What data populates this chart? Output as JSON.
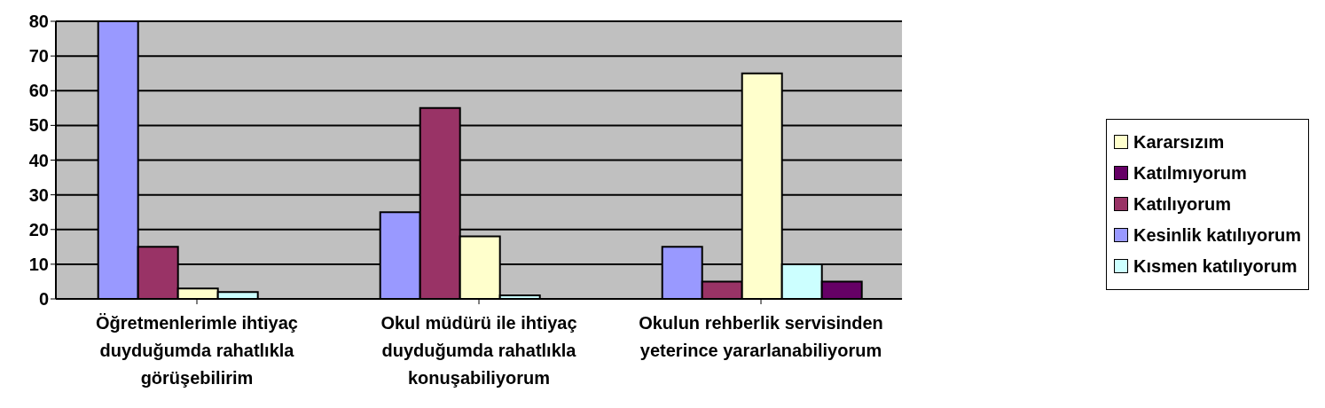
{
  "chart_data": {
    "type": "bar",
    "categories": [
      "Öğretmenlerimle ihtiyaç duyduğumda rahatlıkla görüşebilirim",
      "Okul müdürü ile ihtiyaç duyduğumda rahatlıkla konuşabiliyorum",
      "Okulun rehberlik servisinden yeterince yararlanabiliyorum"
    ],
    "series": [
      {
        "name": "Kesinlik katılıyorum",
        "color": "#9999ff",
        "values": [
          80,
          25,
          15
        ]
      },
      {
        "name": "Katılıyorum",
        "color": "#993366",
        "values": [
          15,
          55,
          5
        ]
      },
      {
        "name": "Kararsızım",
        "color": "#ffffcc",
        "values": [
          3,
          18,
          65
        ]
      },
      {
        "name": "Kısmen katılıyorum",
        "color": "#ccffff",
        "values": [
          2,
          1,
          10
        ]
      },
      {
        "name": "Katılmıyorum",
        "color": "#660066",
        "values": [
          0,
          0,
          5
        ]
      }
    ],
    "ylim": [
      0,
      80
    ],
    "yticks": [
      0,
      10,
      20,
      30,
      40,
      50,
      60,
      70,
      80
    ],
    "grid": "y",
    "legend": "right"
  }
}
